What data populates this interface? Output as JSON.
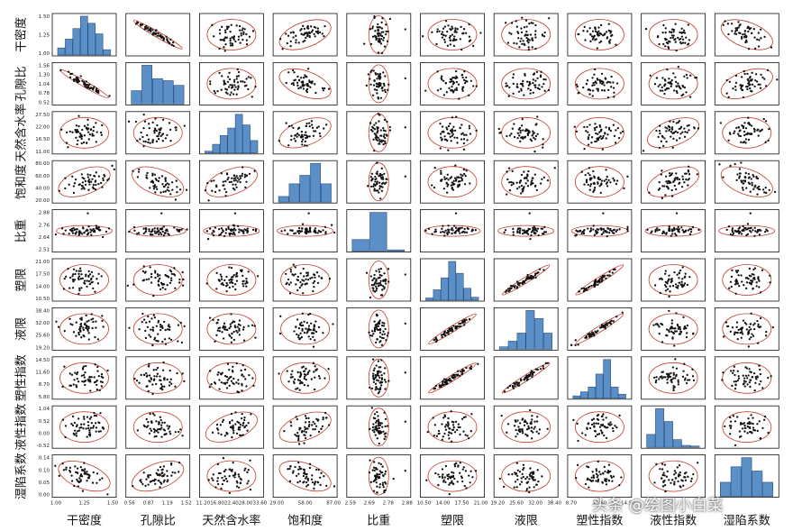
{
  "chart_data": {
    "type": "scatter-matrix",
    "variables": [
      "干密度",
      "孔隙比",
      "天然含水率",
      "饱和度",
      "比重",
      "塑限",
      "液限",
      "塑性指数",
      "液性指数",
      "湿陷系数"
    ],
    "y_tick_labels": [
      [
        "1.00",
        "1.25",
        "1.50"
      ],
      [
        "0.52",
        "0.78",
        "1.04",
        "1.30",
        "1.56"
      ],
      [
        "11.00",
        "16.50",
        "22.00",
        "27.50"
      ],
      [
        "20.00",
        "40.00",
        "60.00",
        "80.00"
      ],
      [
        "2.51",
        "2.64",
        "2.76",
        "2.88"
      ],
      [
        "10.50",
        "14.00",
        "17.50",
        "21.00"
      ],
      [
        "19.20",
        "25.60",
        "32.00",
        "38.40"
      ],
      [
        "5.80",
        "8.70",
        "11.60",
        "14.50"
      ],
      [
        "-0.52",
        "0.00",
        "0.52",
        "1.04"
      ],
      [
        "0.00",
        "0.05",
        "0.10",
        "0.14"
      ]
    ],
    "x_tick_labels": [
      [
        "1.00",
        "1.25",
        "1.50"
      ],
      [
        "0.56",
        "0.87",
        "1.19",
        "1.52"
      ],
      [
        "11.20",
        "16.80",
        "22.40",
        "28.00",
        "33.60"
      ],
      [
        "29.00",
        "58.00",
        "87.00"
      ],
      [
        "2.59",
        "2.69",
        "2.78",
        "2.88"
      ],
      [
        "10.50",
        "14.00",
        "17.50",
        "21.00"
      ],
      [
        "19.20",
        "25.60",
        "32.00",
        "38.40"
      ],
      [
        "8.70",
        "11.60",
        "14.50"
      ],
      [],
      []
    ],
    "histograms": [
      [
        8,
        18,
        30,
        44,
        36,
        24,
        6
      ],
      [
        20,
        58,
        38,
        35,
        28
      ],
      [
        3,
        14,
        28,
        40,
        62,
        45,
        20
      ],
      [
        8,
        26,
        38,
        55,
        26
      ],
      [
        18,
        60,
        2
      ],
      [
        3,
        14,
        30,
        52,
        36,
        16,
        4
      ],
      [
        3,
        10,
        20,
        48,
        38,
        20
      ],
      [
        3,
        8,
        14,
        30,
        48,
        14,
        5
      ],
      [
        20,
        60,
        40,
        12,
        3,
        2
      ],
      [
        20,
        42,
        55,
        36,
        20
      ]
    ],
    "correlation_signs": [
      [
        0,
        -1,
        0,
        1,
        0,
        0,
        0,
        0,
        0,
        -1
      ],
      [
        -1,
        0,
        0,
        -1,
        0,
        0,
        0,
        0,
        0,
        1
      ],
      [
        0,
        0,
        0,
        1,
        0,
        0,
        0,
        0,
        1,
        0
      ],
      [
        1,
        -1,
        1,
        0,
        0,
        0,
        0,
        0,
        1,
        -1
      ],
      [
        0,
        0,
        0,
        0,
        0,
        0,
        0,
        0,
        0,
        0
      ],
      [
        0,
        0,
        0,
        0,
        0,
        0,
        1,
        1,
        0,
        0
      ],
      [
        0,
        0,
        0,
        0,
        0,
        1,
        0,
        1,
        0,
        0
      ],
      [
        0,
        0,
        0,
        0,
        0,
        1,
        1,
        0,
        0,
        0
      ],
      [
        0,
        0,
        1,
        1,
        0,
        0,
        0,
        0,
        0,
        0
      ],
      [
        -1,
        1,
        0,
        -1,
        0,
        0,
        0,
        0,
        0,
        0
      ]
    ],
    "strong_pairs": [
      [
        5,
        6
      ],
      [
        5,
        7
      ],
      [
        6,
        7
      ],
      [
        0,
        1
      ]
    ],
    "ellipse_color": "#c0392b",
    "bar_color": "#5b8fc7",
    "point_color": "#111111"
  },
  "watermark": "头条 @绘图小白菜"
}
